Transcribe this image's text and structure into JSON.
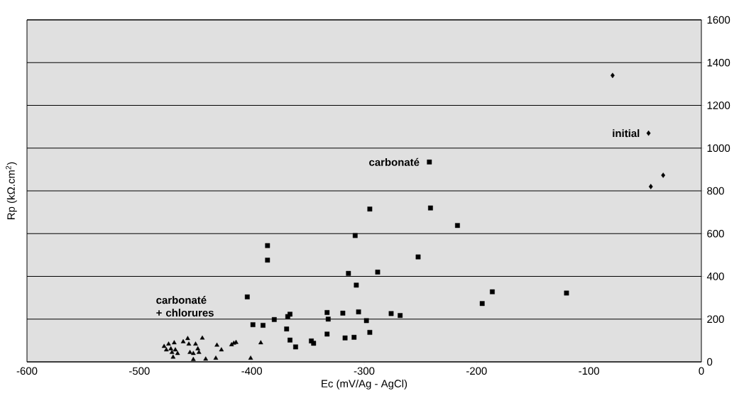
{
  "chart_data": {
    "type": "scatter",
    "xlabel": "Ec (mV/Ag - AgCl)",
    "ylabel": "Rp (kΩ.cm$^{2}$)",
    "xlim": [
      -600,
      0
    ],
    "ylim": [
      0,
      1600
    ],
    "xticks": [
      -600,
      -500,
      -400,
      -300,
      -200,
      -100,
      0
    ],
    "yticks": [
      0,
      200,
      400,
      600,
      800,
      1000,
      1200,
      1400,
      1600
    ],
    "grid": "y",
    "legend": false,
    "series": [
      {
        "name": "carbonaté + chlorures",
        "color": "#000000",
        "marker": "triangle",
        "x": [
          -478,
          -476,
          -474,
          -472,
          -471,
          -469,
          -468,
          -470,
          -466,
          -461,
          -456,
          -455,
          -452,
          -450,
          -448,
          -447,
          -444,
          -457,
          -452,
          -441,
          -432,
          -431,
          -427,
          -418,
          -416,
          -414,
          -401,
          -392
        ],
        "values": [
          72,
          56,
          83,
          61,
          44,
          89,
          56,
          22,
          39,
          94,
          83,
          44,
          39,
          83,
          61,
          44,
          111,
          109,
          11,
          13,
          17,
          78,
          56,
          80,
          87,
          91,
          17,
          89
        ]
      },
      {
        "name": "carbonaté",
        "color": "#000000",
        "marker": "square",
        "x": [
          -242,
          -295,
          -241,
          -217,
          -308,
          -252,
          -314,
          -288,
          -307,
          -195,
          -366,
          -368,
          -333,
          -319,
          -305,
          -276,
          -268,
          -332,
          -298,
          -369,
          -295,
          -366,
          -333,
          -317,
          -309,
          -361,
          -347,
          -345,
          -386,
          -386,
          -404,
          -399,
          -390,
          -380,
          -186,
          -120
        ],
        "values": [
          935,
          715,
          720,
          638,
          591,
          491,
          414,
          420,
          359,
          273,
          223,
          212,
          231,
          228,
          234,
          226,
          217,
          200,
          193,
          154,
          138,
          102,
          130,
          112,
          115,
          70,
          98,
          87,
          476,
          544,
          304,
          174,
          171,
          198,
          328,
          322
        ]
      },
      {
        "name": "initial",
        "color": "#000000",
        "marker": "diamond",
        "x": [
          -79,
          -47,
          -34,
          -45
        ],
        "values": [
          1340,
          1070,
          873,
          820
        ]
      }
    ]
  }
}
